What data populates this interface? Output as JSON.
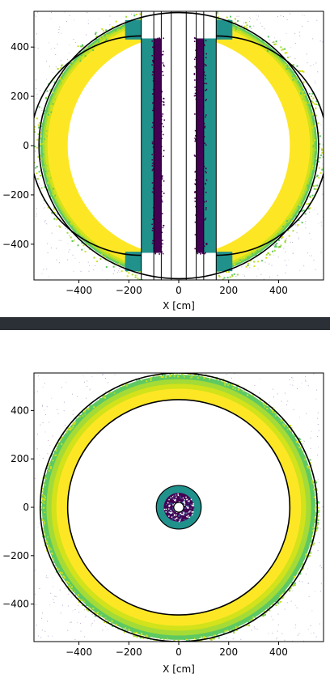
{
  "chart_data": [
    {
      "type": "heatmap",
      "view": "side (X-Z section)",
      "xlabel": "X [cm]",
      "ylabel": "",
      "xlim": [
        -580,
        580
      ],
      "ylim": [
        -545,
        545
      ],
      "xticks": [
        -400,
        -200,
        0,
        200,
        400
      ],
      "xtick_labels": [
        "−400",
        "−200",
        "0",
        "200",
        "400"
      ],
      "yticks": [
        -400,
        -200,
        0,
        200,
        400
      ],
      "ytick_labels": [
        "−400",
        "−200",
        "0",
        "200",
        "400"
      ],
      "colormap": "viridis",
      "outer_boundary": {
        "rx": 560,
        "ry": 540,
        "half_width_at_top": 150
      },
      "inner_boundary": {
        "rx": 445,
        "ry": 445
      },
      "vertical_lines_x": [
        -150,
        -100,
        -70,
        -30,
        30,
        70,
        100,
        150
      ],
      "grid": false
    },
    {
      "type": "heatmap",
      "view": "top (X-Y section)",
      "xlabel": "X [cm]",
      "ylabel": "",
      "xlim": [
        -580,
        580
      ],
      "ylim": [
        -555,
        555
      ],
      "xticks": [
        -400,
        -200,
        0,
        200,
        400
      ],
      "xtick_labels": [
        "−400",
        "−200",
        "0",
        "200",
        "400"
      ],
      "yticks": [
        -400,
        -200,
        0,
        200,
        400
      ],
      "ytick_labels": [
        "−400",
        "−200",
        "0",
        "200",
        "400"
      ],
      "colormap": "viridis",
      "outer_circle_r": 555,
      "inner_circle_r": 445,
      "core_outer_r": 90,
      "core_inner_r": 20,
      "grid": false
    }
  ]
}
